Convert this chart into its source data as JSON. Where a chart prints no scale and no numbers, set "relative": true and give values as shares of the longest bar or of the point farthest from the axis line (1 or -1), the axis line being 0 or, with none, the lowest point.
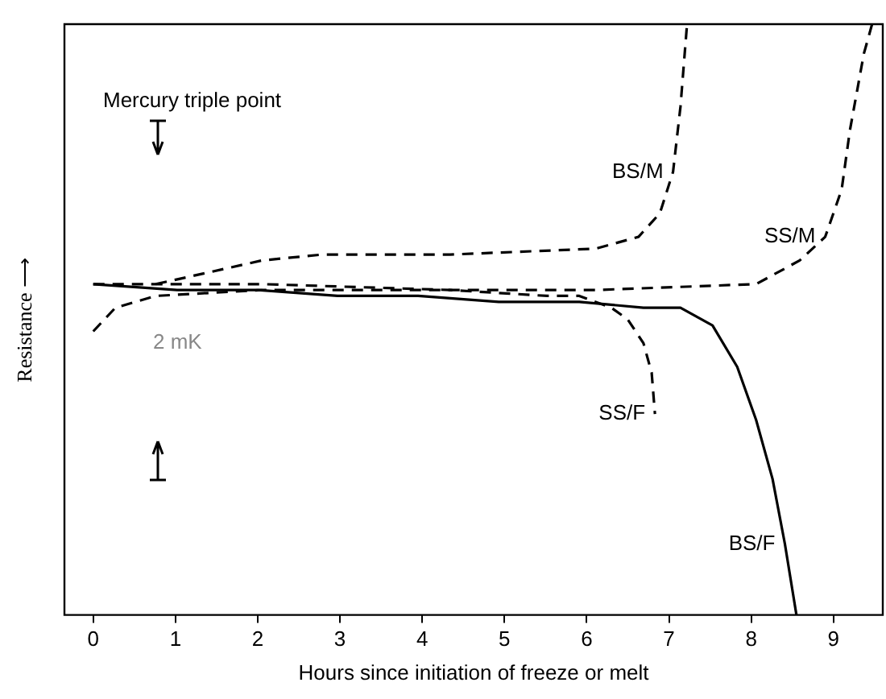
{
  "chart_data": {
    "type": "line",
    "relative": true,
    "xlabel": "Hours since initiation of freeze or melt",
    "ylabel": "Resistance ⟶",
    "xlim": [
      -0.35,
      9.6
    ],
    "xticks": [
      0,
      1,
      2,
      3,
      4,
      5,
      6,
      7,
      8,
      9
    ],
    "grid": false,
    "legend": false,
    "marker": "none",
    "annotations": [
      "Mercury triple point",
      "2 mK"
    ],
    "series": [
      {
        "name": "BS/M",
        "color": "#000000",
        "line_style": "dashed",
        "x": [
          0.76,
          1.41,
          2.05,
          2.78,
          4.34,
          6.11,
          6.63,
          6.89,
          7.05,
          7.14,
          7.22
        ],
        "values": [
          0.56,
          0.58,
          0.6,
          0.61,
          0.61,
          0.62,
          0.64,
          0.68,
          0.75,
          0.86,
          1.0
        ]
      },
      {
        "name": "SS/M",
        "color": "#000000",
        "line_style": "dashed",
        "x": [
          0,
          0.27,
          0.76,
          2.05,
          4.34,
          6.11,
          8.06,
          8.59,
          8.9,
          9.1,
          9.2,
          9.37,
          9.47
        ],
        "values": [
          0.48,
          0.52,
          0.54,
          0.55,
          0.55,
          0.55,
          0.56,
          0.6,
          0.64,
          0.72,
          0.82,
          0.95,
          1.0
        ]
      },
      {
        "name": "SS/F",
        "color": "#000000",
        "line_style": "dashed",
        "x": [
          0,
          1.41,
          2.05,
          4.34,
          5.52,
          5.91,
          6.3,
          6.5,
          6.69,
          6.79,
          6.83
        ],
        "values": [
          0.56,
          0.56,
          0.56,
          0.55,
          0.54,
          0.54,
          0.52,
          0.5,
          0.46,
          0.41,
          0.34
        ]
      },
      {
        "name": "BS/F",
        "color": "#000000",
        "line_style": "solid",
        "x": [
          0,
          1.02,
          2.0,
          2.97,
          3.95,
          4.93,
          5.91,
          6.69,
          7.14,
          7.53,
          7.83,
          8.06,
          8.26,
          8.41,
          8.55
        ],
        "values": [
          0.56,
          0.55,
          0.55,
          0.54,
          0.54,
          0.53,
          0.53,
          0.52,
          0.52,
          0.49,
          0.42,
          0.33,
          0.23,
          0.12,
          0
        ]
      }
    ]
  }
}
